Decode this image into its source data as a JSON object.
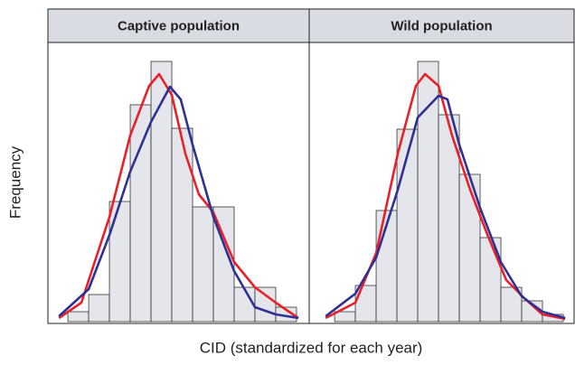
{
  "chart_data": {
    "type": "histogram",
    "ylabel": "Frequency",
    "xlabel": "CID (standardized for each year)",
    "ylim": [
      0,
      309
    ],
    "bar_color": "#e4e6ec",
    "panels": [
      {
        "title": "Captive population",
        "xlim": [
          -0.96,
          11.61
        ],
        "bins": [
          0,
          1,
          2,
          3,
          4,
          5,
          6,
          7,
          8,
          9,
          10,
          11
        ],
        "counts": [
          11,
          30,
          133,
          240,
          288,
          214,
          127,
          127,
          38,
          38,
          16
        ],
        "series": [
          {
            "color": "#e8202a",
            "x": [
              -0.43,
              0.65,
              2,
              3,
              3.91,
              4.39,
              5,
              5.65,
              6.3,
              7,
              8,
              9,
              10,
              11.09
            ],
            "values": [
              4,
              21,
              116,
              206,
              261,
              274,
              251,
              186,
              141,
              121,
              66,
              38,
              21,
              4
            ]
          },
          {
            "color": "#2e3192",
            "x": [
              -0.43,
              1,
              2,
              3,
              4,
              4.91,
              5.43,
              6,
              7,
              8,
              9,
              10,
              11.09
            ],
            "values": [
              6,
              36,
              96,
              166,
              221,
              260,
              246,
              196,
              116,
              56,
              16,
              8,
              4
            ]
          }
        ]
      },
      {
        "title": "Wild population",
        "xlim": [
          -1.22,
          11.52
        ],
        "bins": [
          0,
          1,
          2,
          3,
          4,
          5,
          6,
          7,
          8,
          9,
          10,
          11
        ],
        "counts": [
          11,
          40,
          123,
          213,
          288,
          229,
          163,
          93,
          38,
          23,
          8
        ],
        "series": [
          {
            "color": "#e8202a",
            "x": [
              -0.43,
              1,
              2,
              3.04,
              3.91,
              4.35,
              5,
              5.65,
              6.52,
              7.39,
              8.26,
              9.13,
              10,
              11.09
            ],
            "values": [
              4,
              21,
              76,
              186,
              261,
              274,
              261,
              206,
              146,
              94,
              46,
              26,
              8,
              3
            ]
          },
          {
            "color": "#2e3192",
            "x": [
              -0.43,
              1,
              2,
              3.04,
              4,
              5,
              5.43,
              6,
              7,
              8,
              9,
              10,
              11.09
            ],
            "values": [
              6,
              31,
              71,
              146,
              226,
              250,
              246,
              196,
              126,
              66,
              28,
              11,
              4
            ]
          }
        ]
      }
    ]
  }
}
